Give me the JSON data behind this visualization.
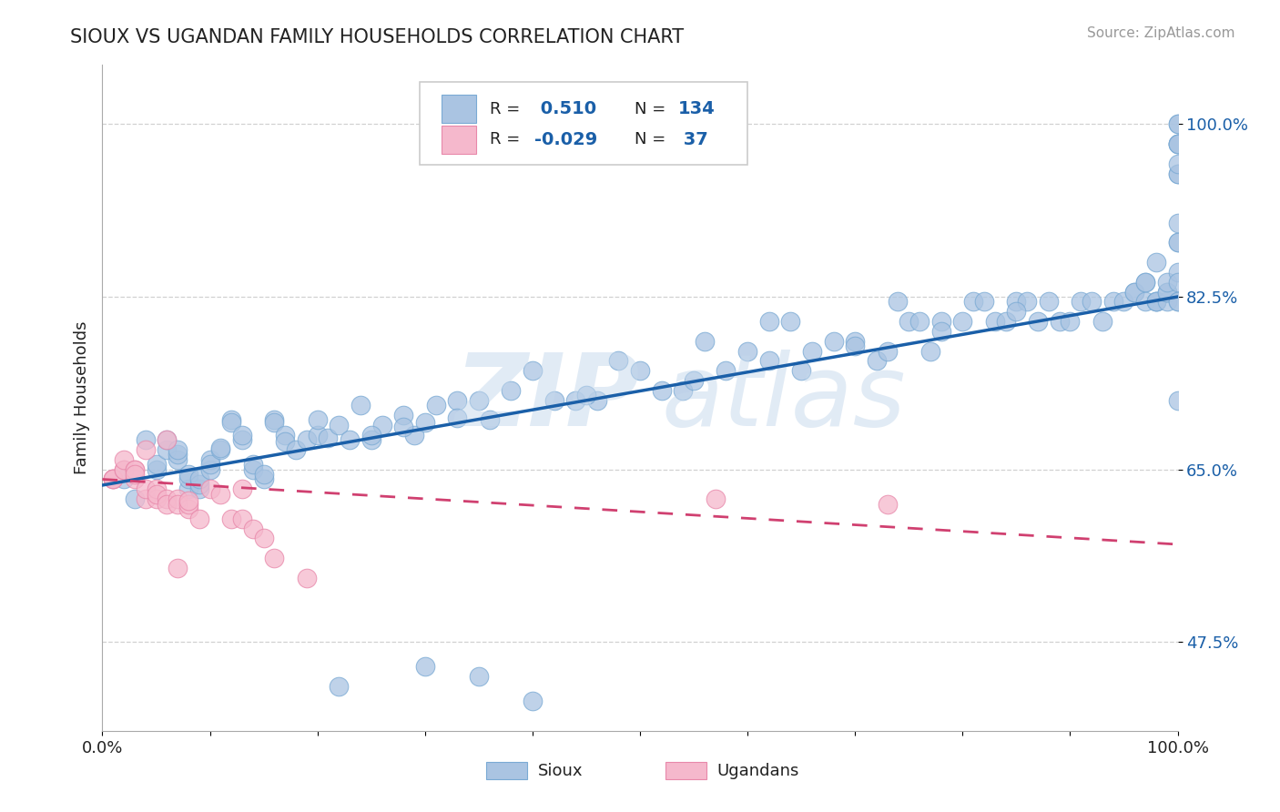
{
  "title": "SIOUX VS UGANDAN FAMILY HOUSEHOLDS CORRELATION CHART",
  "source_text": "Source: ZipAtlas.com",
  "ylabel": "Family Households",
  "xmin": 0.0,
  "xmax": 1.0,
  "ymin": 0.385,
  "ymax": 1.06,
  "yticks": [
    0.475,
    0.65,
    0.825,
    1.0
  ],
  "ytick_labels": [
    "47.5%",
    "65.0%",
    "82.5%",
    "100.0%"
  ],
  "xticks": [
    0.0,
    0.1,
    0.2,
    0.3,
    0.4,
    0.5,
    0.6,
    0.7,
    0.8,
    0.9,
    1.0
  ],
  "xtick_labels": [
    "0.0%",
    "",
    "",
    "",
    "",
    "",
    "",
    "",
    "",
    "",
    "100.0%"
  ],
  "legend_r_sioux": "0.510",
  "legend_n_sioux": "134",
  "legend_r_ugandan": "-0.029",
  "legend_n_ugandan": "37",
  "sioux_color": "#aac4e2",
  "sioux_edge_color": "#7aaad4",
  "sioux_line_color": "#1a5fa8",
  "ugandan_color": "#f5b8cc",
  "ugandan_edge_color": "#e888aa",
  "ugandan_line_color": "#d04070",
  "background_color": "#ffffff",
  "title_color": "#222222",
  "axis_label_color": "#1a5fa8",
  "legend_text_color_dark": "#111111",
  "watermark_color": "#c5d8ec",
  "sioux_x": [
    0.02,
    0.03,
    0.04,
    0.05,
    0.05,
    0.06,
    0.06,
    0.07,
    0.07,
    0.07,
    0.08,
    0.08,
    0.08,
    0.09,
    0.09,
    0.09,
    0.1,
    0.1,
    0.1,
    0.11,
    0.11,
    0.12,
    0.12,
    0.13,
    0.13,
    0.14,
    0.14,
    0.15,
    0.15,
    0.16,
    0.16,
    0.17,
    0.17,
    0.18,
    0.19,
    0.2,
    0.21,
    0.22,
    0.23,
    0.24,
    0.25,
    0.26,
    0.28,
    0.29,
    0.3,
    0.31,
    0.33,
    0.35,
    0.36,
    0.38,
    0.4,
    0.42,
    0.44,
    0.46,
    0.48,
    0.5,
    0.52,
    0.54,
    0.56,
    0.58,
    0.6,
    0.62,
    0.64,
    0.65,
    0.66,
    0.68,
    0.7,
    0.72,
    0.73,
    0.74,
    0.75,
    0.76,
    0.77,
    0.78,
    0.8,
    0.81,
    0.82,
    0.83,
    0.84,
    0.85,
    0.86,
    0.87,
    0.88,
    0.89,
    0.9,
    0.91,
    0.92,
    0.93,
    0.94,
    0.95,
    0.96,
    0.96,
    0.97,
    0.97,
    0.97,
    0.98,
    0.98,
    0.98,
    0.98,
    0.99,
    0.99,
    0.99,
    0.99,
    1.0,
    1.0,
    1.0,
    1.0,
    1.0,
    1.0,
    1.0,
    1.0,
    1.0,
    1.0,
    1.0,
    1.0,
    1.0,
    1.0,
    1.0,
    1.0,
    1.0,
    0.22,
    0.3,
    0.35,
    0.4,
    0.2,
    0.25,
    0.28,
    0.33,
    0.45,
    0.55,
    0.62,
    0.7,
    0.78,
    0.85
  ],
  "sioux_y": [
    0.64,
    0.62,
    0.68,
    0.65,
    0.655,
    0.67,
    0.68,
    0.66,
    0.665,
    0.67,
    0.63,
    0.64,
    0.645,
    0.63,
    0.635,
    0.64,
    0.65,
    0.66,
    0.655,
    0.67,
    0.672,
    0.7,
    0.698,
    0.68,
    0.685,
    0.65,
    0.655,
    0.64,
    0.645,
    0.7,
    0.698,
    0.685,
    0.678,
    0.67,
    0.68,
    0.685,
    0.682,
    0.695,
    0.68,
    0.715,
    0.68,
    0.695,
    0.705,
    0.685,
    0.698,
    0.715,
    0.72,
    0.72,
    0.7,
    0.73,
    0.75,
    0.72,
    0.72,
    0.72,
    0.76,
    0.75,
    0.73,
    0.73,
    0.78,
    0.75,
    0.77,
    0.8,
    0.8,
    0.75,
    0.77,
    0.78,
    0.78,
    0.76,
    0.77,
    0.82,
    0.8,
    0.8,
    0.77,
    0.8,
    0.8,
    0.82,
    0.82,
    0.8,
    0.8,
    0.82,
    0.82,
    0.8,
    0.82,
    0.8,
    0.8,
    0.82,
    0.82,
    0.8,
    0.82,
    0.82,
    0.83,
    0.83,
    0.84,
    0.82,
    0.84,
    0.86,
    0.82,
    0.82,
    0.82,
    0.82,
    0.83,
    0.83,
    0.84,
    0.85,
    0.88,
    0.82,
    0.84,
    0.88,
    0.9,
    0.95,
    0.95,
    0.82,
    0.72,
    0.98,
    0.98,
    0.98,
    0.98,
    1.0,
    1.0,
    0.96,
    0.43,
    0.45,
    0.44,
    0.415,
    0.7,
    0.685,
    0.693,
    0.702,
    0.725,
    0.74,
    0.76,
    0.775,
    0.79,
    0.81
  ],
  "ugandan_x": [
    0.01,
    0.01,
    0.01,
    0.02,
    0.02,
    0.02,
    0.03,
    0.03,
    0.03,
    0.03,
    0.04,
    0.04,
    0.04,
    0.05,
    0.05,
    0.05,
    0.06,
    0.06,
    0.06,
    0.07,
    0.07,
    0.07,
    0.08,
    0.08,
    0.08,
    0.09,
    0.1,
    0.11,
    0.12,
    0.13,
    0.13,
    0.14,
    0.15,
    0.16,
    0.19,
    0.57,
    0.73
  ],
  "ugandan_y": [
    0.64,
    0.64,
    0.64,
    0.65,
    0.65,
    0.66,
    0.64,
    0.65,
    0.65,
    0.645,
    0.62,
    0.63,
    0.67,
    0.62,
    0.63,
    0.625,
    0.62,
    0.615,
    0.68,
    0.55,
    0.62,
    0.615,
    0.61,
    0.615,
    0.618,
    0.6,
    0.63,
    0.625,
    0.6,
    0.6,
    0.63,
    0.59,
    0.58,
    0.56,
    0.54,
    0.62,
    0.615
  ]
}
